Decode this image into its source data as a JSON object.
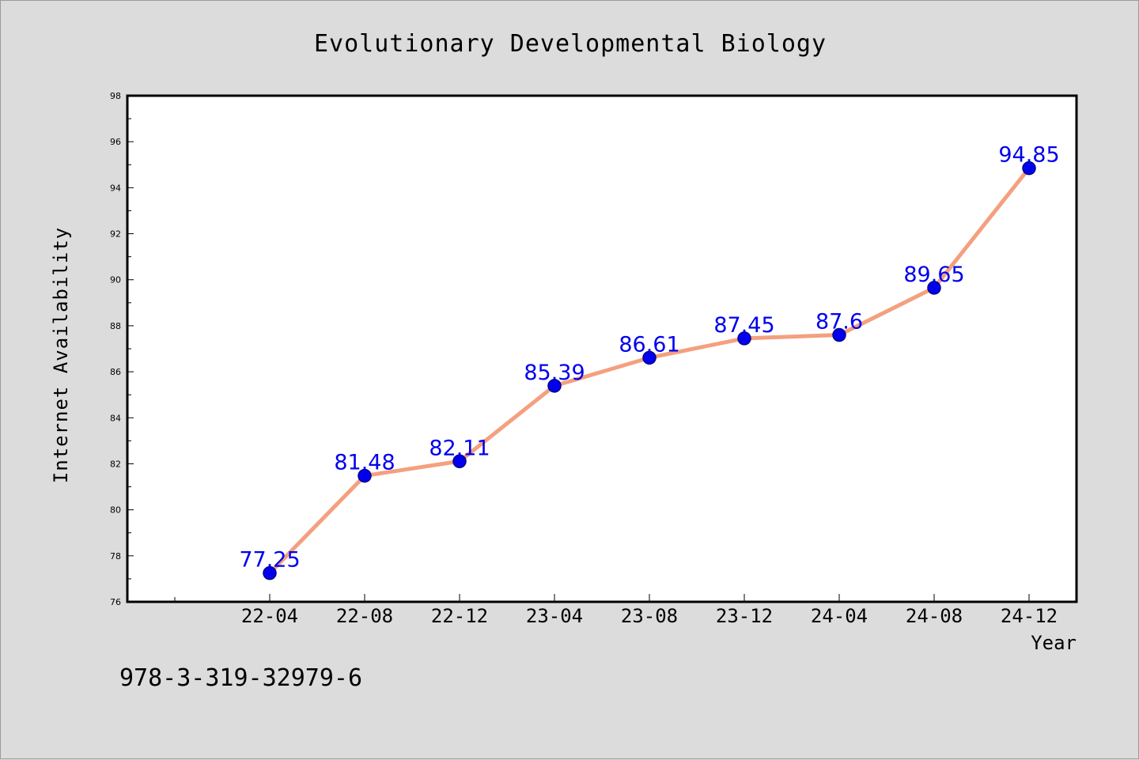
{
  "chart_data": {
    "type": "line",
    "title": "Evolutionary Developmental Biology",
    "xlabel": "Year",
    "ylabel": "Internet Availability",
    "categories": [
      "22-04",
      "22-08",
      "22-12",
      "23-04",
      "23-08",
      "23-12",
      "24-04",
      "24-08",
      "24-12"
    ],
    "series": [
      {
        "values": [
          77.25,
          81.48,
          82.11,
          85.39,
          86.61,
          87.45,
          87.6,
          89.65,
          94.85
        ],
        "labels": [
          "77.25",
          "81.48",
          "82.11",
          "85.39",
          "86.61",
          "87.45",
          "87.6",
          "89.65",
          "94.85"
        ]
      }
    ],
    "ylim": [
      76,
      98
    ],
    "yticks": [
      "76",
      "78",
      "80",
      "82",
      "84",
      "86",
      "88",
      "90",
      "92",
      "94",
      "96",
      "98"
    ],
    "grid": false,
    "line_color": "#f4a07f",
    "marker_color": "#0000ee",
    "label_color": "#0000ee",
    "plot_background": "#ffffff",
    "page_background": "#dcdcdc"
  },
  "footer": {
    "isbn": "978-3-319-32979-6"
  }
}
